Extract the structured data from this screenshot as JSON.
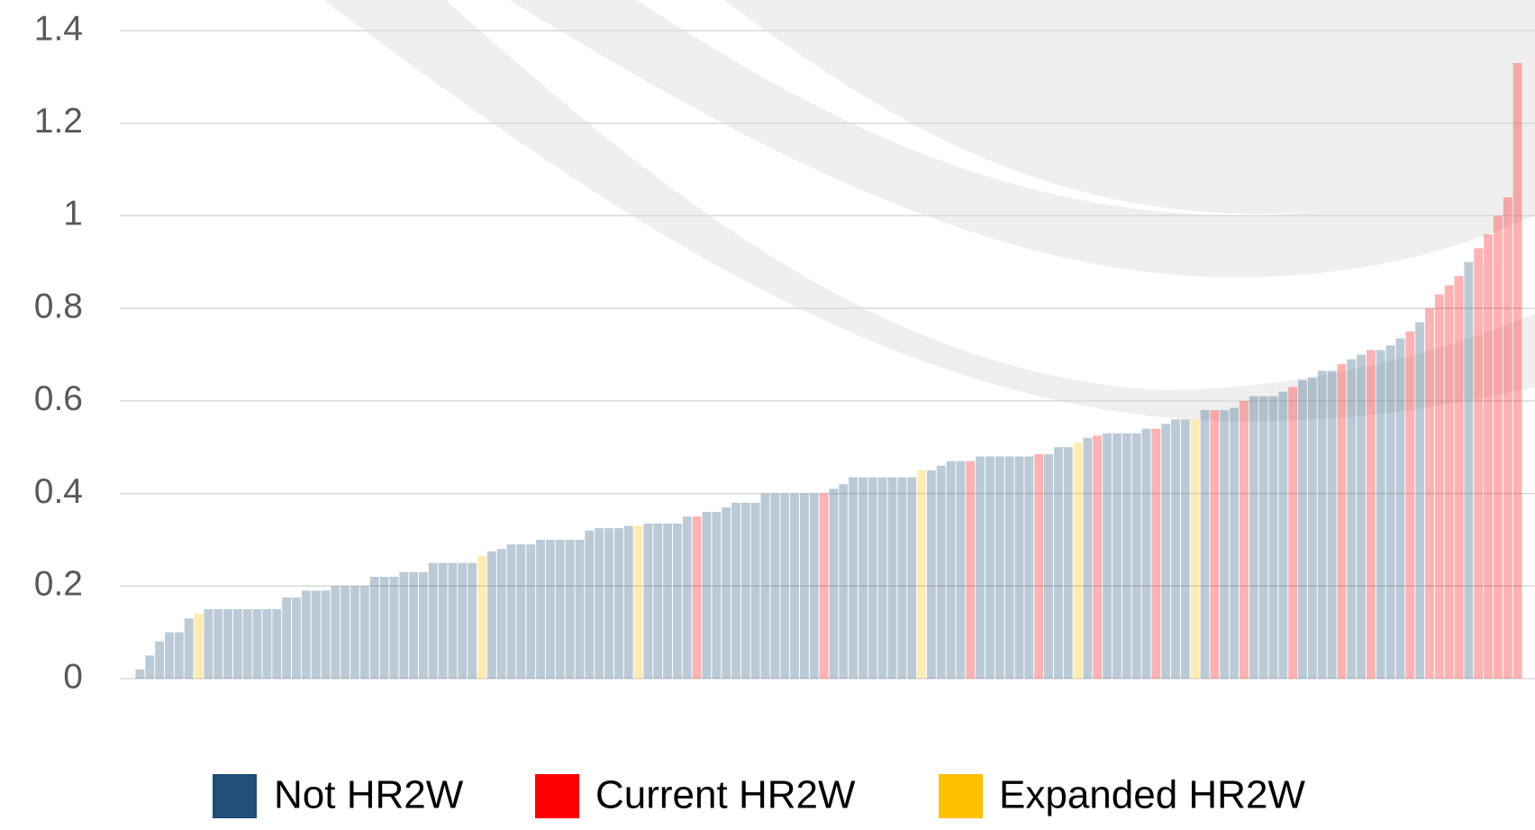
{
  "chart_data": {
    "type": "bar",
    "ylim": [
      0,
      1.4
    ],
    "yticks": [
      0,
      0.2,
      0.4,
      0.6,
      0.8,
      1,
      1.2,
      1.4
    ],
    "grid": true,
    "legend": "bottom",
    "series": [
      {
        "name": "Not HR2W",
        "color": "#1f4e79",
        "values": [
          0.02,
          0.05,
          0.08,
          0.1,
          0.1,
          0.13,
          null,
          0.15,
          0.15,
          0.15,
          0.15,
          0.15,
          0.15,
          0.15,
          0.15,
          0.175,
          0.175,
          0.19,
          0.19,
          0.19,
          0.2,
          0.2,
          0.2,
          0.2,
          0.22,
          0.22,
          0.22,
          0.23,
          0.23,
          0.23,
          0.25,
          0.25,
          0.25,
          0.25,
          0.25,
          null,
          0.275,
          0.28,
          0.29,
          0.29,
          0.29,
          0.3,
          0.3,
          0.3,
          0.3,
          0.3,
          0.32,
          0.325,
          0.325,
          0.325,
          0.33,
          null,
          0.335,
          0.335,
          0.335,
          0.335,
          0.35,
          null,
          0.36,
          0.36,
          0.37,
          0.38,
          0.38,
          0.38,
          0.4,
          0.4,
          0.4,
          0.4,
          0.4,
          0.4,
          null,
          0.41,
          0.42,
          0.435,
          0.435,
          0.435,
          0.435,
          0.435,
          0.435,
          0.435,
          null,
          0.45,
          0.46,
          0.47,
          0.47,
          null,
          0.48,
          0.48,
          0.48,
          0.48,
          0.48,
          0.48,
          null,
          0.485,
          0.5,
          0.5,
          null,
          0.52,
          null,
          0.53,
          0.53,
          0.53,
          0.53,
          0.54,
          null,
          0.55,
          0.56,
          0.56,
          null,
          0.58,
          null,
          0.58,
          0.585,
          null,
          0.61,
          0.61,
          0.61,
          0.62,
          null,
          0.645,
          0.65,
          0.665,
          0.665,
          null,
          0.69,
          0.7,
          null,
          0.71,
          0.72,
          0.735,
          null,
          0.77,
          null,
          null,
          null,
          null,
          0.9,
          null,
          null,
          null,
          null,
          null
        ]
      },
      {
        "name": "Current HR2W",
        "color": "#ff0000",
        "values": [
          null,
          null,
          null,
          null,
          null,
          null,
          null,
          null,
          null,
          null,
          null,
          null,
          null,
          null,
          null,
          null,
          null,
          null,
          null,
          null,
          null,
          null,
          null,
          null,
          null,
          null,
          null,
          null,
          null,
          null,
          null,
          null,
          null,
          null,
          null,
          null,
          null,
          null,
          null,
          null,
          null,
          null,
          null,
          null,
          null,
          null,
          null,
          null,
          null,
          null,
          null,
          null,
          null,
          null,
          null,
          null,
          null,
          0.35,
          null,
          null,
          null,
          null,
          null,
          null,
          null,
          null,
          null,
          null,
          null,
          null,
          0.4,
          null,
          null,
          null,
          null,
          null,
          null,
          null,
          null,
          null,
          null,
          null,
          null,
          null,
          null,
          0.47,
          null,
          null,
          null,
          null,
          null,
          null,
          0.485,
          null,
          null,
          null,
          null,
          null,
          0.525,
          null,
          null,
          null,
          null,
          null,
          0.54,
          null,
          null,
          null,
          null,
          null,
          0.58,
          null,
          null,
          0.6,
          null,
          null,
          null,
          null,
          0.63,
          null,
          null,
          null,
          null,
          0.68,
          null,
          null,
          0.71,
          null,
          null,
          null,
          0.75,
          null,
          0.8,
          0.83,
          0.85,
          0.87,
          null,
          0.93,
          0.96,
          1.0,
          1.04,
          1.33
        ]
      },
      {
        "name": "Expanded HR2W",
        "color": "#ffc000",
        "values": [
          null,
          null,
          null,
          null,
          null,
          null,
          0.14,
          null,
          null,
          null,
          null,
          null,
          null,
          null,
          null,
          null,
          null,
          null,
          null,
          null,
          null,
          null,
          null,
          null,
          null,
          null,
          null,
          null,
          null,
          null,
          null,
          null,
          null,
          null,
          null,
          0.265,
          null,
          null,
          null,
          null,
          null,
          null,
          null,
          null,
          null,
          null,
          null,
          null,
          null,
          null,
          null,
          0.33,
          null,
          null,
          null,
          null,
          null,
          null,
          null,
          null,
          null,
          null,
          null,
          null,
          null,
          null,
          null,
          null,
          null,
          null,
          null,
          null,
          null,
          null,
          null,
          null,
          null,
          null,
          null,
          null,
          0.45,
          null,
          null,
          null,
          null,
          null,
          null,
          null,
          null,
          null,
          null,
          null,
          null,
          null,
          null,
          null,
          0.51,
          null,
          null,
          null,
          null,
          null,
          null,
          null,
          null,
          null,
          null,
          null,
          0.56,
          null,
          null,
          null,
          null,
          null,
          null,
          null,
          null,
          null,
          null,
          null,
          null,
          null,
          null,
          null,
          null,
          null,
          null,
          null,
          null,
          null,
          null,
          null,
          null,
          null,
          null,
          null,
          null,
          null,
          null,
          null,
          null,
          null
        ]
      }
    ]
  }
}
